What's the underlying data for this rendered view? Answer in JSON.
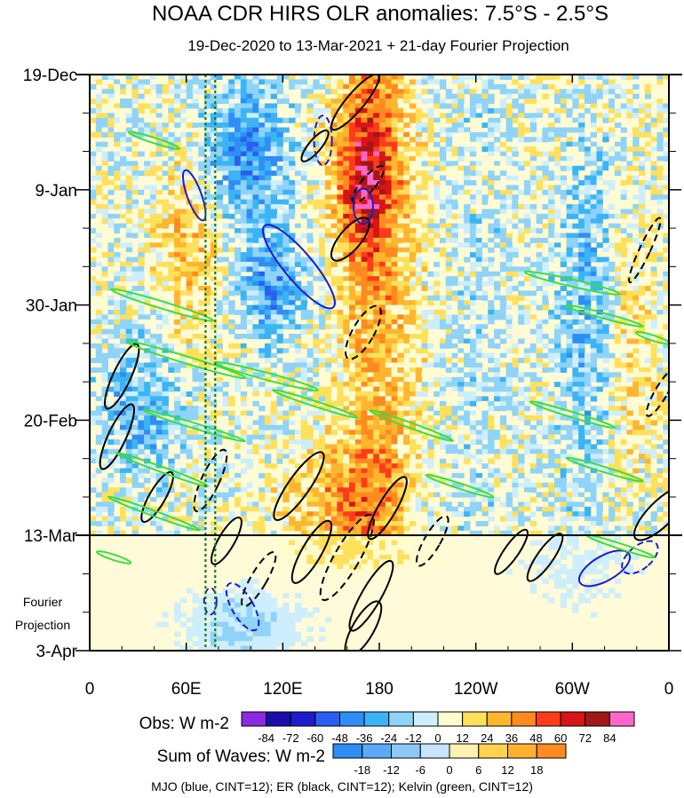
{
  "chart_data": {
    "type": "heatmap",
    "title": "NOAA CDR HIRS OLR anomalies: 7.5°S - 2.5°S",
    "subtitle": "19-Dec-2020 to 13-Mar-2021 + 21-day Fourier Projection",
    "x_ticks": [
      {
        "label": "0",
        "lon": 0
      },
      {
        "label": "60E",
        "lon": 60
      },
      {
        "label": "120E",
        "lon": 120
      },
      {
        "label": "180",
        "lon": 180
      },
      {
        "label": "120W",
        "lon": 240
      },
      {
        "label": "60W",
        "lon": 300
      },
      {
        "label": "0",
        "lon": 360
      }
    ],
    "y_ticks": [
      {
        "label": "19-Dec",
        "day": 0
      },
      {
        "label": "9-Jan",
        "day": 21
      },
      {
        "label": "30-Jan",
        "day": 42
      },
      {
        "label": "20-Feb",
        "day": 63
      },
      {
        "label": "13-Mar",
        "day": 84
      },
      {
        "label": "3-Apr",
        "day": 105
      }
    ],
    "xlim": [
      0,
      360
    ],
    "ylim_days": [
      0,
      105
    ],
    "observation_end_day": 84,
    "projection_label": "Fourier Projection",
    "reference_lines_lon": [
      72,
      78
    ],
    "obs_colorbar": {
      "label": "Obs: W m-2",
      "ticks": [
        "-84",
        "-72",
        "-60",
        "-48",
        "-36",
        "-24",
        "-12",
        "0",
        "12",
        "24",
        "36",
        "48",
        "60",
        "72",
        "84"
      ],
      "colors": [
        "#8a2be2",
        "#1a0dab",
        "#1c1ccc",
        "#2a5ef0",
        "#2f8ef5",
        "#3bb4f5",
        "#8fd3f8",
        "#cdeefc",
        "#fffccf",
        "#ffe05a",
        "#ffb52e",
        "#ff8a1f",
        "#ff3b1a",
        "#d81414",
        "#a01818",
        "#ff66cc"
      ]
    },
    "waves_colorbar": {
      "label": "Sum of Waves: W m-2",
      "ticks": [
        "-18",
        "-12",
        "-6",
        "0",
        "6",
        "12",
        "18"
      ],
      "colors": [
        "#2f8ef5",
        "#5aaaf7",
        "#8fc8f8",
        "#c6e4fb",
        "#fff2b0",
        "#ffd34d",
        "#ffb02e",
        "#ff8a1f"
      ]
    },
    "contour_legend": "MJO (blue, CINT=12); ER (black, CINT=12); Kelvin (green, CINT=12)",
    "colors": {
      "mjo": "#1c1ccc",
      "er": "#000000",
      "kelvin": "#3dde3d",
      "refline": "#1a7a1a"
    }
  }
}
